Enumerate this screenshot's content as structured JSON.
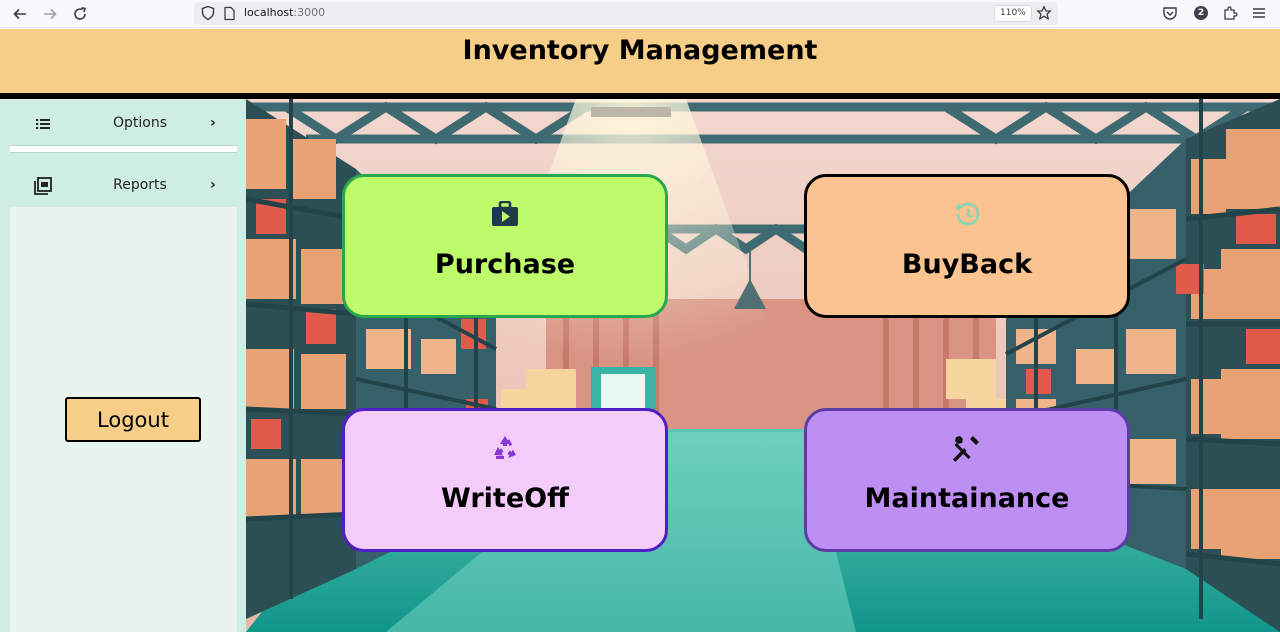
{
  "browser": {
    "url_host": "localhost",
    "url_port": ":3000",
    "zoom": "110%",
    "notification_count": "2",
    "icons": [
      "back-arrow-icon",
      "forward-arrow-icon",
      "reload-icon",
      "shield-icon",
      "page-icon",
      "star-icon",
      "pocket-icon",
      "extensions-icon",
      "menu-icon"
    ]
  },
  "header": {
    "title": "Inventory Management"
  },
  "sidebar": {
    "items": [
      {
        "label": "Options",
        "icon": "list-icon"
      },
      {
        "label": "Reports",
        "icon": "report-icon"
      }
    ],
    "logout_label": "Logout"
  },
  "cards": [
    {
      "label": "Purchase",
      "icon": "briefcase-play-icon",
      "color": "#bdfb6a",
      "border": "#27a84e"
    },
    {
      "label": "BuyBack",
      "icon": "restore-clock-icon",
      "color": "#fbc38f",
      "border": "#000000"
    },
    {
      "label": "WriteOff",
      "icon": "recycle-icon",
      "color": "#f4ccfb",
      "border": "#4f1ec4"
    },
    {
      "label": "Maintainance",
      "icon": "tools-icon",
      "color": "#bd8ff2",
      "border": "#5c3da4"
    }
  ],
  "theme": {
    "header_bg": "#f6ce87",
    "sidebar_bg": "#cfeee3",
    "floor": "#1f9e8c"
  }
}
